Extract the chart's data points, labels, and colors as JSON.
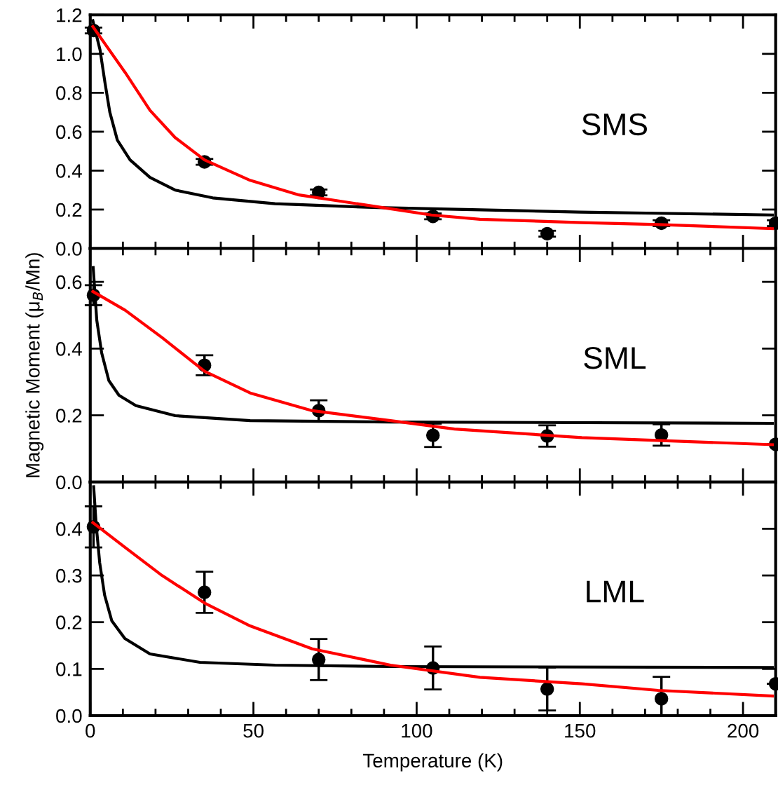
{
  "chart_data": [
    {
      "type": "scatter",
      "xlim": [
        0,
        210
      ],
      "xticks": [
        0,
        50,
        100,
        150,
        200
      ],
      "ylim": [
        0,
        1.2
      ],
      "yticks": [
        {
          "value": 0,
          "label": "0.0"
        },
        {
          "value": 0.2,
          "label": "0.2"
        },
        {
          "value": 0.4,
          "label": "0.4"
        },
        {
          "value": 0.6,
          "label": "0.6"
        },
        {
          "value": 0.8,
          "label": "0.8"
        },
        {
          "value": 1.0,
          "label": "1.0"
        },
        {
          "value": 1.2,
          "label": "1.2"
        }
      ],
      "tick_labels": "y",
      "grid": false,
      "legend": false,
      "annotations": [
        "SMS"
      ],
      "series": [
        {
          "color": "#000000",
          "marker": "circle",
          "x": [
            1,
            35,
            70,
            105,
            140,
            175,
            210
          ],
          "values": [
            1.12,
            0.445,
            0.288,
            0.165,
            0.076,
            0.13,
            0.13
          ],
          "errors": [
            0.015,
            0.015,
            0.015,
            0.015,
            0.015,
            0.015,
            0.015
          ]
        },
        {
          "type": "line",
          "color": "#000000",
          "marker": "none",
          "x": [
            0.8,
            3.0,
            4.5,
            6.0,
            8.3,
            12.2,
            18.3,
            26,
            37.5,
            56.6,
            88,
            150,
            209
          ],
          "values": [
            1.17,
            1.02,
            0.853,
            0.7,
            0.557,
            0.455,
            0.365,
            0.3,
            0.26,
            0.23,
            0.21,
            0.187,
            0.172
          ]
        },
        {
          "type": "line",
          "color": "#ff0000",
          "marker": "none",
          "x": [
            0.8,
            10.7,
            18.3,
            26,
            35,
            49,
            64,
            92,
            104.5,
            119.4,
            150.6,
            174,
            209
          ],
          "values": [
            1.14,
            0.904,
            0.71,
            0.57,
            0.455,
            0.35,
            0.275,
            0.204,
            0.172,
            0.15,
            0.133,
            0.123,
            0.102
          ]
        }
      ]
    },
    {
      "type": "scatter",
      "xlim": [
        0,
        210
      ],
      "xticks": [
        0,
        50,
        100,
        150,
        200
      ],
      "ylim": [
        0,
        0.7
      ],
      "yticks": [
        {
          "value": 0,
          "label": "0.0"
        },
        {
          "value": 0.2,
          "label": "0.2"
        },
        {
          "value": 0.4,
          "label": "0.4"
        },
        {
          "value": 0.6,
          "label": "0.6"
        }
      ],
      "tick_labels": "y",
      "grid": false,
      "legend": false,
      "ylabel": "Magnetic Moment (μ$_{B}$/Mn)",
      "annotations": [
        "SML"
      ],
      "series": [
        {
          "color": "#000000",
          "marker": "circle",
          "x": [
            1,
            35,
            70,
            105,
            140,
            175,
            210
          ],
          "values": [
            0.56,
            0.35,
            0.214,
            0.14,
            0.138,
            0.141,
            0.113
          ],
          "errors": [
            0.03,
            0.03,
            0.031,
            0.035,
            0.032,
            0.032,
            null
          ]
        },
        {
          "type": "line",
          "color": "#000000",
          "marker": "none",
          "x": [
            0.9,
            2.0,
            3.5,
            5.7,
            8.8,
            14,
            26,
            49,
            92,
            209
          ],
          "values": [
            0.643,
            0.485,
            0.387,
            0.304,
            0.26,
            0.229,
            0.199,
            0.184,
            0.18,
            0.176
          ]
        },
        {
          "type": "line",
          "color": "#ff0000",
          "marker": "none",
          "x": [
            0.8,
            10.7,
            22,
            35,
            49,
            68,
            92,
            111.6,
            150.6,
            209
          ],
          "values": [
            0.571,
            0.515,
            0.433,
            0.332,
            0.267,
            0.214,
            0.184,
            0.159,
            0.133,
            0.112
          ]
        }
      ]
    },
    {
      "type": "scatter",
      "xlim": [
        0,
        210
      ],
      "xticks": [
        0,
        50,
        100,
        150,
        200
      ],
      "ylim": [
        0,
        0.5
      ],
      "yticks": [
        {
          "value": 0,
          "label": "0.0"
        },
        {
          "value": 0.1,
          "label": "0.1"
        },
        {
          "value": 0.2,
          "label": "0.2"
        },
        {
          "value": 0.3,
          "label": "0.3"
        },
        {
          "value": 0.4,
          "label": "0.4"
        }
      ],
      "grid": false,
      "legend": false,
      "xlabel": "Temperature (K)",
      "annotations": [
        "LML"
      ],
      "series": [
        {
          "color": "#000000",
          "marker": "circle",
          "x": [
            1,
            35,
            70,
            105,
            140,
            175,
            210
          ],
          "values": [
            0.404,
            0.264,
            0.12,
            0.102,
            0.057,
            0.036,
            0.068
          ],
          "errors": [
            0.044,
            0.044,
            0.044,
            0.046,
            0.046,
            [
              0.0,
              0.083
            ],
            null
          ]
        },
        {
          "type": "line",
          "color": "#000000",
          "marker": "none",
          "x": [
            1.05,
            1.8,
            2.9,
            4.4,
            6.6,
            10.6,
            18.3,
            33.6,
            56.6,
            92,
            209
          ],
          "values": [
            0.49,
            0.41,
            0.327,
            0.258,
            0.203,
            0.165,
            0.132,
            0.114,
            0.108,
            0.105,
            0.103
          ]
        },
        {
          "type": "line",
          "color": "#ff0000",
          "marker": "none",
          "x": [
            0.8,
            10.7,
            22,
            35,
            49,
            68,
            92,
            119.4,
            150.6,
            174,
            209
          ],
          "values": [
            0.413,
            0.36,
            0.3,
            0.241,
            0.192,
            0.143,
            0.108,
            0.082,
            0.068,
            0.054,
            0.042
          ]
        }
      ]
    }
  ]
}
